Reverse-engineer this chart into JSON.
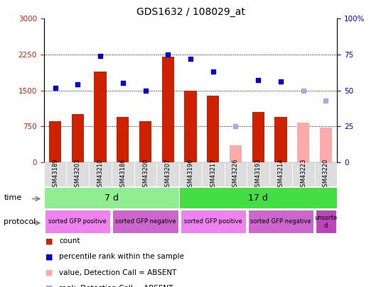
{
  "title": "GDS1632 / 108029_at",
  "samples": [
    "GSM43189",
    "GSM43203",
    "GSM43210",
    "GSM43186",
    "GSM43200",
    "GSM43207",
    "GSM43196",
    "GSM43217",
    "GSM43226",
    "GSM43193",
    "GSM43214",
    "GSM43223",
    "GSM43220"
  ],
  "counts": [
    850,
    1000,
    1900,
    950,
    850,
    2200,
    1490,
    1390,
    null,
    1050,
    950,
    null,
    null
  ],
  "counts_absent": [
    null,
    null,
    null,
    null,
    null,
    null,
    null,
    null,
    350,
    null,
    null,
    830,
    720
  ],
  "ranks": [
    52,
    54,
    74,
    55,
    50,
    75,
    72,
    63,
    null,
    57,
    56,
    null,
    null
  ],
  "ranks_absent": [
    null,
    null,
    null,
    null,
    null,
    null,
    null,
    null,
    25,
    null,
    null,
    50,
    43
  ],
  "ylim_left": [
    0,
    3000
  ],
  "ylim_right": [
    0,
    100
  ],
  "yticks_left": [
    0,
    750,
    1500,
    2250,
    3000
  ],
  "yticks_right": [
    0,
    25,
    50,
    75,
    100
  ],
  "time_groups": [
    {
      "label": "7 d",
      "start": 0,
      "end": 6,
      "color": "#90ee90"
    },
    {
      "label": "17 d",
      "start": 6,
      "end": 13,
      "color": "#44dd44"
    }
  ],
  "protocol_groups": [
    {
      "label": "sorted GFP positive",
      "start": 0,
      "end": 3,
      "color": "#ee82ee"
    },
    {
      "label": "sorted GFP negative",
      "start": 3,
      "end": 6,
      "color": "#cc66cc"
    },
    {
      "label": "sorted GFP positive",
      "start": 6,
      "end": 9,
      "color": "#ee82ee"
    },
    {
      "label": "sorted GFP negative",
      "start": 9,
      "end": 12,
      "color": "#cc66cc"
    },
    {
      "label": "unsorte\nd",
      "start": 12,
      "end": 13,
      "color": "#bb44bb"
    }
  ],
  "bar_color": "#cc2200",
  "bar_absent_color": "#ffaaaa",
  "rank_color": "#0000cc",
  "rank_absent_color": "#aaaadd",
  "grid_color": "#888888",
  "bg_color": "#ffffff",
  "axis_color_left": "#cc2200",
  "axis_color_right": "#0000cc",
  "legend_items": [
    {
      "color": "#cc2200",
      "label": "count"
    },
    {
      "color": "#0000cc",
      "label": "percentile rank within the sample"
    },
    {
      "color": "#ffaaaa",
      "label": "value, Detection Call = ABSENT"
    },
    {
      "color": "#aaaadd",
      "label": "rank, Detection Call = ABSENT"
    }
  ]
}
